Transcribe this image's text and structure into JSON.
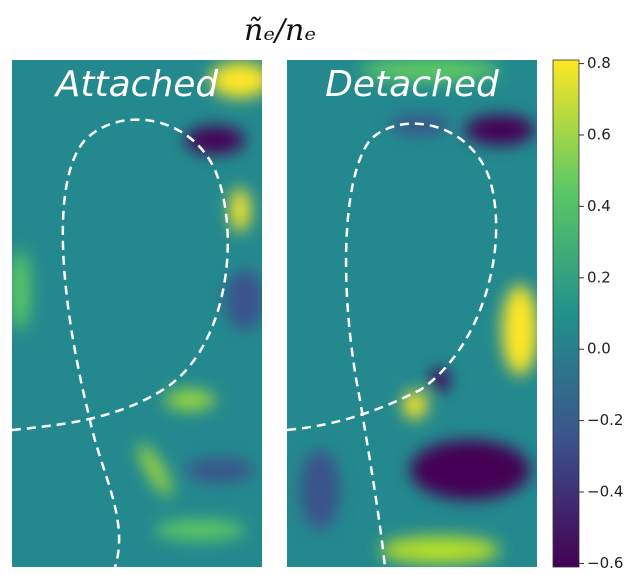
{
  "chart_data": {
    "type": "heatmap",
    "title": "ñₑ/nₑ",
    "panels": [
      "Attached",
      "Detached"
    ],
    "colorbar": {
      "lim": [
        -0.61,
        0.81
      ],
      "ticks": [
        0.8,
        0.6,
        0.4,
        0.2,
        {
          "value": 0,
          "label": "0.0"
        },
        {
          "value": -0.2,
          "label": "−0.2"
        },
        {
          "value": -0.4,
          "label": "−0.4"
        },
        {
          "value": -0.6,
          "label": "−0.6"
        }
      ]
    }
  }
}
